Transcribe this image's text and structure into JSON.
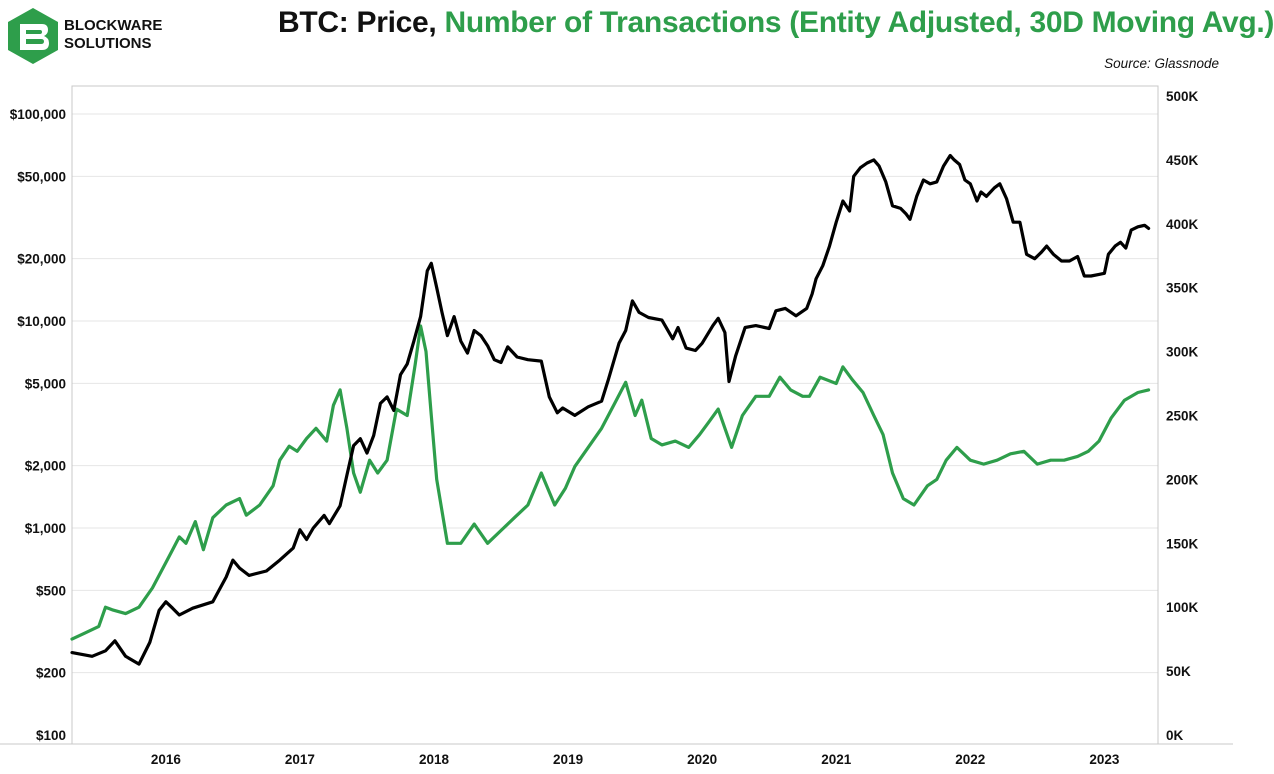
{
  "header": {
    "brand_line1": "BLOCKWARE",
    "brand_line2": "SOLUTIONS",
    "title_part1": "BTC: Price, ",
    "title_part2": "Number of Transactions (Entity Adjusted, 30D Moving Avg.)",
    "source": "Source: Glassnode"
  },
  "colors": {
    "price": "#000000",
    "transactions": "#2e9e4b",
    "grid": "#e6e6e6"
  },
  "chart_data": {
    "type": "line",
    "title": "BTC: Price, Number of Transactions (Entity Adjusted, 30D Moving Avg.)",
    "xlim": [
      2015.3,
      2023.4
    ],
    "x_ticks": [
      {
        "value": 2016,
        "label": "2016"
      },
      {
        "value": 2017,
        "label": "2017"
      },
      {
        "value": 2018,
        "label": "2018"
      },
      {
        "value": 2019,
        "label": "2019"
      },
      {
        "value": 2020,
        "label": "2020"
      },
      {
        "value": 2021,
        "label": "2021"
      },
      {
        "value": 2022,
        "label": "2022"
      },
      {
        "value": 2023,
        "label": "2023"
      }
    ],
    "y_left": {
      "scale": "log",
      "ylim": [
        100,
        150000
      ],
      "ticks": [
        {
          "value": 100,
          "label": "$100"
        },
        {
          "value": 200,
          "label": "$200"
        },
        {
          "value": 500,
          "label": "$500"
        },
        {
          "value": 1000,
          "label": "$1,000"
        },
        {
          "value": 2000,
          "label": "$2,000"
        },
        {
          "value": 5000,
          "label": "$5,000"
        },
        {
          "value": 10000,
          "label": "$10,000"
        },
        {
          "value": 20000,
          "label": "$20,000"
        },
        {
          "value": 50000,
          "label": "$50,000"
        },
        {
          "value": 100000,
          "label": "$100,000"
        }
      ]
    },
    "y_right": {
      "scale": "linear",
      "ylim": [
        0,
        500000
      ],
      "ticks": [
        {
          "value": 0,
          "label": "0K"
        },
        {
          "value": 50000,
          "label": "50K"
        },
        {
          "value": 100000,
          "label": "100K"
        },
        {
          "value": 150000,
          "label": "150K"
        },
        {
          "value": 200000,
          "label": "200K"
        },
        {
          "value": 250000,
          "label": "250K"
        },
        {
          "value": 300000,
          "label": "300K"
        },
        {
          "value": 350000,
          "label": "350K"
        },
        {
          "value": 400000,
          "label": "400K"
        },
        {
          "value": 450000,
          "label": "450K"
        },
        {
          "value": 500000,
          "label": "500K"
        }
      ]
    },
    "grid": true,
    "legend": "none",
    "series": [
      {
        "axis": "left",
        "color": "#000000",
        "points": [
          [
            2015.3,
            250
          ],
          [
            2015.45,
            240
          ],
          [
            2015.55,
            255
          ],
          [
            2015.62,
            285
          ],
          [
            2015.7,
            240
          ],
          [
            2015.8,
            220
          ],
          [
            2015.88,
            280
          ],
          [
            2015.95,
            400
          ],
          [
            2016.0,
            440
          ],
          [
            2016.05,
            410
          ],
          [
            2016.1,
            380
          ],
          [
            2016.2,
            410
          ],
          [
            2016.35,
            440
          ],
          [
            2016.45,
            580
          ],
          [
            2016.5,
            700
          ],
          [
            2016.55,
            640
          ],
          [
            2016.62,
            590
          ],
          [
            2016.75,
            620
          ],
          [
            2016.85,
            700
          ],
          [
            2016.95,
            800
          ],
          [
            2017.0,
            980
          ],
          [
            2017.05,
            880
          ],
          [
            2017.1,
            1000
          ],
          [
            2017.18,
            1150
          ],
          [
            2017.22,
            1050
          ],
          [
            2017.3,
            1280
          ],
          [
            2017.35,
            1800
          ],
          [
            2017.4,
            2500
          ],
          [
            2017.45,
            2700
          ],
          [
            2017.5,
            2300
          ],
          [
            2017.55,
            2800
          ],
          [
            2017.6,
            4000
          ],
          [
            2017.65,
            4300
          ],
          [
            2017.7,
            3700
          ],
          [
            2017.75,
            5500
          ],
          [
            2017.8,
            6200
          ],
          [
            2017.85,
            8000
          ],
          [
            2017.9,
            10500
          ],
          [
            2017.95,
            17500
          ],
          [
            2017.98,
            19000
          ],
          [
            2018.02,
            14500
          ],
          [
            2018.06,
            11000
          ],
          [
            2018.1,
            8500
          ],
          [
            2018.15,
            10500
          ],
          [
            2018.2,
            8000
          ],
          [
            2018.25,
            7000
          ],
          [
            2018.3,
            9000
          ],
          [
            2018.35,
            8500
          ],
          [
            2018.4,
            7600
          ],
          [
            2018.45,
            6500
          ],
          [
            2018.5,
            6300
          ],
          [
            2018.55,
            7500
          ],
          [
            2018.62,
            6700
          ],
          [
            2018.7,
            6500
          ],
          [
            2018.8,
            6400
          ],
          [
            2018.86,
            4300
          ],
          [
            2018.92,
            3600
          ],
          [
            2018.96,
            3800
          ],
          [
            2019.05,
            3500
          ],
          [
            2019.15,
            3850
          ],
          [
            2019.25,
            4100
          ],
          [
            2019.3,
            5200
          ],
          [
            2019.38,
            7800
          ],
          [
            2019.43,
            9000
          ],
          [
            2019.48,
            12500
          ],
          [
            2019.53,
            11000
          ],
          [
            2019.6,
            10400
          ],
          [
            2019.7,
            10100
          ],
          [
            2019.78,
            8200
          ],
          [
            2019.82,
            9300
          ],
          [
            2019.88,
            7400
          ],
          [
            2019.95,
            7200
          ],
          [
            2020.0,
            7800
          ],
          [
            2020.08,
            9500
          ],
          [
            2020.12,
            10300
          ],
          [
            2020.17,
            8800
          ],
          [
            2020.2,
            5100
          ],
          [
            2020.25,
            6800
          ],
          [
            2020.32,
            9300
          ],
          [
            2020.4,
            9500
          ],
          [
            2020.5,
            9200
          ],
          [
            2020.55,
            11200
          ],
          [
            2020.62,
            11500
          ],
          [
            2020.7,
            10600
          ],
          [
            2020.78,
            11500
          ],
          [
            2020.82,
            13500
          ],
          [
            2020.85,
            16000
          ],
          [
            2020.9,
            18500
          ],
          [
            2020.95,
            23000
          ],
          [
            2021.0,
            30000
          ],
          [
            2021.05,
            38000
          ],
          [
            2021.1,
            34000
          ],
          [
            2021.13,
            50000
          ],
          [
            2021.18,
            55000
          ],
          [
            2021.23,
            58000
          ],
          [
            2021.28,
            60000
          ],
          [
            2021.32,
            56000
          ],
          [
            2021.37,
            47000
          ],
          [
            2021.42,
            36000
          ],
          [
            2021.48,
            35000
          ],
          [
            2021.52,
            33000
          ],
          [
            2021.55,
            31000
          ],
          [
            2021.6,
            40000
          ],
          [
            2021.65,
            48000
          ],
          [
            2021.7,
            46000
          ],
          [
            2021.75,
            47000
          ],
          [
            2021.8,
            56000
          ],
          [
            2021.85,
            63000
          ],
          [
            2021.88,
            60000
          ],
          [
            2021.92,
            57000
          ],
          [
            2021.96,
            48000
          ],
          [
            2022.0,
            46000
          ],
          [
            2022.05,
            38000
          ],
          [
            2022.08,
            42000
          ],
          [
            2022.12,
            40000
          ],
          [
            2022.18,
            44000
          ],
          [
            2022.22,
            46000
          ],
          [
            2022.27,
            39000
          ],
          [
            2022.32,
            30000
          ],
          [
            2022.37,
            30000
          ],
          [
            2022.42,
            21000
          ],
          [
            2022.48,
            20000
          ],
          [
            2022.53,
            21500
          ],
          [
            2022.57,
            23000
          ],
          [
            2022.62,
            21000
          ],
          [
            2022.68,
            19500
          ],
          [
            2022.74,
            19500
          ],
          [
            2022.8,
            20500
          ],
          [
            2022.85,
            16500
          ],
          [
            2022.9,
            16500
          ],
          [
            2022.96,
            16800
          ],
          [
            2023.0,
            17000
          ],
          [
            2023.03,
            21000
          ],
          [
            2023.08,
            23000
          ],
          [
            2023.12,
            24000
          ],
          [
            2023.16,
            22500
          ],
          [
            2023.2,
            27500
          ],
          [
            2023.25,
            28500
          ],
          [
            2023.3,
            29000
          ],
          [
            2023.33,
            28000
          ]
        ]
      },
      {
        "axis": "right",
        "color": "#2e9e4b",
        "points": [
          [
            2015.3,
            75000
          ],
          [
            2015.4,
            80000
          ],
          [
            2015.5,
            85000
          ],
          [
            2015.55,
            100000
          ],
          [
            2015.6,
            98000
          ],
          [
            2015.7,
            95000
          ],
          [
            2015.8,
            100000
          ],
          [
            2015.9,
            115000
          ],
          [
            2016.0,
            135000
          ],
          [
            2016.05,
            145000
          ],
          [
            2016.1,
            155000
          ],
          [
            2016.15,
            150000
          ],
          [
            2016.22,
            167000
          ],
          [
            2016.28,
            145000
          ],
          [
            2016.35,
            170000
          ],
          [
            2016.45,
            180000
          ],
          [
            2016.55,
            185000
          ],
          [
            2016.6,
            172000
          ],
          [
            2016.7,
            180000
          ],
          [
            2016.8,
            195000
          ],
          [
            2016.85,
            215000
          ],
          [
            2016.92,
            226000
          ],
          [
            2016.98,
            222000
          ],
          [
            2017.05,
            232000
          ],
          [
            2017.12,
            240000
          ],
          [
            2017.2,
            230000
          ],
          [
            2017.25,
            258000
          ],
          [
            2017.3,
            270000
          ],
          [
            2017.35,
            240000
          ],
          [
            2017.4,
            205000
          ],
          [
            2017.45,
            190000
          ],
          [
            2017.52,
            215000
          ],
          [
            2017.58,
            205000
          ],
          [
            2017.65,
            215000
          ],
          [
            2017.72,
            255000
          ],
          [
            2017.8,
            250000
          ],
          [
            2017.86,
            290000
          ],
          [
            2017.9,
            320000
          ],
          [
            2017.94,
            300000
          ],
          [
            2017.98,
            250000
          ],
          [
            2018.02,
            200000
          ],
          [
            2018.1,
            150000
          ],
          [
            2018.2,
            150000
          ],
          [
            2018.3,
            165000
          ],
          [
            2018.4,
            150000
          ],
          [
            2018.5,
            160000
          ],
          [
            2018.6,
            170000
          ],
          [
            2018.7,
            180000
          ],
          [
            2018.8,
            205000
          ],
          [
            2018.9,
            180000
          ],
          [
            2018.98,
            193000
          ],
          [
            2019.05,
            210000
          ],
          [
            2019.15,
            225000
          ],
          [
            2019.25,
            240000
          ],
          [
            2019.35,
            260000
          ],
          [
            2019.43,
            276000
          ],
          [
            2019.5,
            250000
          ],
          [
            2019.55,
            262000
          ],
          [
            2019.62,
            232000
          ],
          [
            2019.7,
            227000
          ],
          [
            2019.8,
            230000
          ],
          [
            2019.9,
            225000
          ],
          [
            2019.98,
            235000
          ],
          [
            2020.05,
            245000
          ],
          [
            2020.12,
            255000
          ],
          [
            2020.22,
            225000
          ],
          [
            2020.3,
            250000
          ],
          [
            2020.4,
            265000
          ],
          [
            2020.5,
            265000
          ],
          [
            2020.58,
            280000
          ],
          [
            2020.66,
            270000
          ],
          [
            2020.75,
            265000
          ],
          [
            2020.8,
            265000
          ],
          [
            2020.88,
            280000
          ],
          [
            2021.0,
            275000
          ],
          [
            2021.05,
            288000
          ],
          [
            2021.12,
            278000
          ],
          [
            2021.2,
            268000
          ],
          [
            2021.28,
            250000
          ],
          [
            2021.35,
            235000
          ],
          [
            2021.42,
            205000
          ],
          [
            2021.5,
            185000
          ],
          [
            2021.58,
            180000
          ],
          [
            2021.68,
            195000
          ],
          [
            2021.75,
            200000
          ],
          [
            2021.82,
            215000
          ],
          [
            2021.9,
            225000
          ],
          [
            2022.0,
            215000
          ],
          [
            2022.1,
            212000
          ],
          [
            2022.2,
            215000
          ],
          [
            2022.3,
            220000
          ],
          [
            2022.4,
            222000
          ],
          [
            2022.5,
            212000
          ],
          [
            2022.6,
            215000
          ],
          [
            2022.7,
            215000
          ],
          [
            2022.8,
            218000
          ],
          [
            2022.88,
            222000
          ],
          [
            2022.96,
            230000
          ],
          [
            2023.05,
            248000
          ],
          [
            2023.15,
            262000
          ],
          [
            2023.25,
            268000
          ],
          [
            2023.33,
            270000
          ]
        ]
      }
    ]
  }
}
